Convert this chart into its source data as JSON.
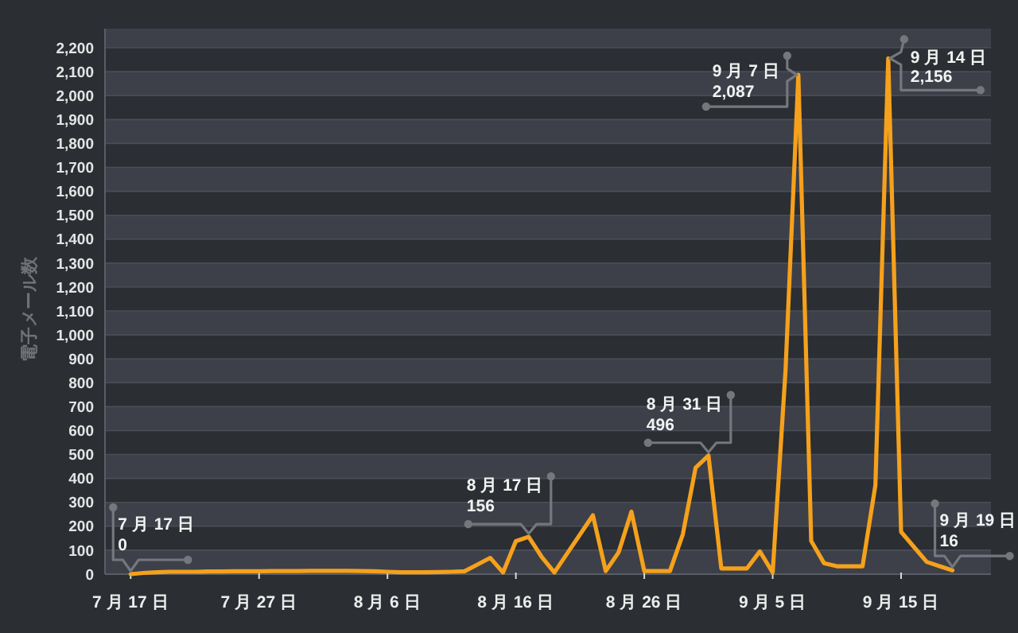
{
  "chart_data": {
    "type": "line",
    "ylabel": "電子メール数",
    "x": [
      "--07-17",
      "--07-18",
      "--07-19",
      "--07-20",
      "--07-21",
      "--07-22",
      "--07-23",
      "--07-24",
      "--07-25",
      "--07-26",
      "--07-27",
      "--07-28",
      "--07-29",
      "--07-30",
      "--07-31",
      "--08-01",
      "--08-02",
      "--08-03",
      "--08-04",
      "--08-05",
      "--08-06",
      "--08-07",
      "--08-08",
      "--08-09",
      "--08-10",
      "--08-11",
      "--08-12",
      "--08-13",
      "--08-14",
      "--08-15",
      "--08-16",
      "--08-17",
      "--08-18",
      "--08-19",
      "--08-20",
      "--08-21",
      "--08-22",
      "--08-23",
      "--08-24",
      "--08-25",
      "--08-26",
      "--08-27",
      "--08-28",
      "--08-29",
      "--08-30",
      "--08-31",
      "--09-01",
      "--09-02",
      "--09-03",
      "--09-04",
      "--09-05",
      "--09-06",
      "--09-07",
      "--09-08",
      "--09-09",
      "--09-10",
      "--09-11",
      "--09-12",
      "--09-13",
      "--09-14",
      "--09-15",
      "--09-16",
      "--09-17",
      "--09-18",
      "--09-19"
    ],
    "values": [
      0,
      5,
      8,
      10,
      10,
      10,
      11,
      11,
      12,
      12,
      12,
      13,
      13,
      13,
      14,
      14,
      14,
      14,
      13,
      12,
      10,
      8,
      8,
      8,
      9,
      10,
      12,
      40,
      68,
      7,
      138,
      156,
      73,
      7,
      87,
      166,
      246,
      13,
      91,
      261,
      13,
      13,
      13,
      166,
      445,
      496,
      24,
      24,
      24,
      95,
      7,
      850,
      2087,
      139,
      46,
      33,
      33,
      33,
      372,
      2156,
      177,
      114,
      51,
      33,
      16
    ],
    "color": "#f5a11c",
    "xlim": [
      "--07-15",
      "--09-22"
    ],
    "xticks": [
      {
        "value": "--07-17",
        "label": "7 月 17 日"
      },
      {
        "value": "--07-27",
        "label": "7 月 27 日"
      },
      {
        "value": "--08-06",
        "label": "8 月 6 日"
      },
      {
        "value": "--08-16",
        "label": "8 月 16 日"
      },
      {
        "value": "--08-26",
        "label": "8 月 26 日"
      },
      {
        "value": "--09-05",
        "label": "9 月 5 日"
      },
      {
        "value": "--09-15",
        "label": "9 月 15 日"
      }
    ],
    "ylim": [
      0,
      2280
    ],
    "yticks": [
      0,
      100,
      200,
      300,
      400,
      500,
      600,
      700,
      800,
      900,
      {
        "value": 1000,
        "label": "1,000"
      },
      {
        "value": 1100,
        "label": "1,100"
      },
      {
        "value": 1200,
        "label": "1,200"
      },
      {
        "value": 1300,
        "label": "1,300"
      },
      {
        "value": 1400,
        "label": "1,400"
      },
      {
        "value": 1500,
        "label": "1,500"
      },
      {
        "value": 1600,
        "label": "1,600"
      },
      {
        "value": 1700,
        "label": "1,700"
      },
      {
        "value": 1800,
        "label": "1,800"
      },
      {
        "value": 1900,
        "label": "1,900"
      },
      {
        "value": 2000,
        "label": "2,000"
      },
      {
        "value": 2100,
        "label": "2,100"
      },
      {
        "value": 2200,
        "label": "2,200"
      }
    ],
    "grid": "y",
    "annotations": [
      {
        "text": "7 月 17 日\n0",
        "x": "--07-17",
        "y": 0
      },
      {
        "text": "8 月 17 日\n156",
        "x": "--08-17",
        "y": 156
      },
      {
        "text": "8 月 31 日\n496",
        "x": "--08-31",
        "y": 496
      },
      {
        "text": "9 月 7 日\n2,087",
        "x": "--09-07",
        "y": 2087
      },
      {
        "text": "9 月 14 日\n2,156",
        "x": "--09-14",
        "y": 2156
      },
      {
        "text": "9 月 19 日\n16",
        "x": "--09-19",
        "y": 16
      }
    ]
  }
}
